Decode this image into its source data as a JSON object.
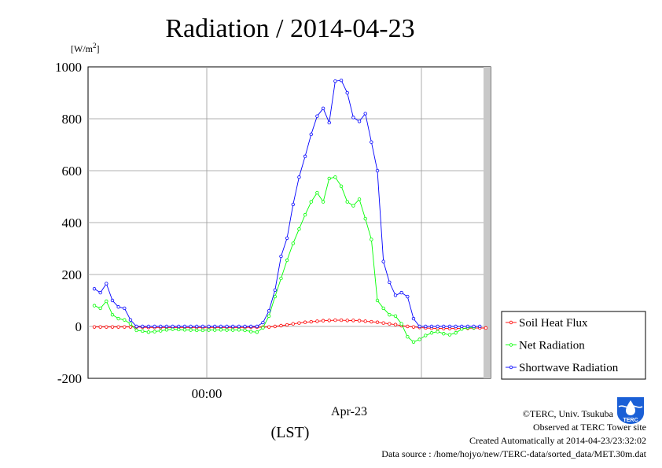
{
  "chart_data": {
    "type": "line",
    "title": "Radiation / 2014-04-23",
    "ylabel": "[W/m",
    "ylabel_sup": "2",
    "ylabel_close": "]",
    "ylim": [
      -200,
      1000
    ],
    "yticks": [
      -200,
      0,
      200,
      400,
      600,
      800,
      1000
    ],
    "xlabel": "(LST)",
    "x_tick_label": "00:00",
    "x_date_label": "Apr-23",
    "grid": true,
    "legend_position": "right",
    "series": [
      {
        "name": "Soil Heat Flux",
        "color": "#ff0000",
        "values": [
          -2,
          -2,
          -2,
          -2,
          -2,
          -2,
          -2,
          -2,
          -3,
          -4,
          -4,
          -4,
          -4,
          -4,
          -4,
          -4,
          -4,
          -4,
          -4,
          -4,
          -4,
          -4,
          -4,
          -4,
          -4,
          -4,
          -3,
          -3,
          -3,
          -2,
          0,
          3,
          6,
          10,
          13,
          16,
          18,
          20,
          22,
          23,
          24,
          24,
          23,
          23,
          22,
          20,
          18,
          16,
          13,
          10,
          7,
          3,
          0,
          -2,
          -4,
          -6,
          -7,
          -8,
          -8,
          -8,
          -8,
          -8,
          -7,
          -6,
          -6,
          -6
        ]
      },
      {
        "name": "Net Radiation",
        "color": "#00ff00",
        "values": [
          80,
          70,
          97,
          45,
          30,
          25,
          10,
          -15,
          -18,
          -22,
          -20,
          -17,
          -13,
          -11,
          -12,
          -13,
          -14,
          -15,
          -15,
          -14,
          -14,
          -13,
          -14,
          -14,
          -13,
          -15,
          -20,
          -22,
          -5,
          40,
          115,
          185,
          255,
          320,
          375,
          430,
          480,
          515,
          480,
          570,
          575,
          540,
          480,
          465,
          490,
          415,
          335,
          100,
          70,
          45,
          40,
          10,
          -40,
          -60,
          -50,
          -35,
          -25,
          -20,
          -28,
          -32,
          -25,
          -10,
          -5,
          -5
        ]
      },
      {
        "name": "Shortwave Radiation",
        "color": "#0000ff",
        "values": [
          145,
          130,
          165,
          100,
          75,
          70,
          25,
          0,
          0,
          0,
          0,
          0,
          0,
          0,
          0,
          0,
          0,
          0,
          0,
          0,
          0,
          0,
          0,
          0,
          0,
          0,
          0,
          0,
          15,
          60,
          140,
          270,
          340,
          470,
          575,
          655,
          740,
          810,
          840,
          785,
          945,
          948,
          900,
          805,
          790,
          820,
          710,
          600,
          250,
          170,
          120,
          130,
          115,
          30,
          0,
          0,
          0,
          0,
          0,
          0,
          0,
          0,
          0,
          0,
          0
        ]
      }
    ]
  },
  "footer": {
    "credit": "©TERC, Univ. Tsukuba",
    "observed": "Observed at TERC Tower site",
    "created": "Created Automatically at 2014-04-23/23:32:02",
    "source": "Data source : /home/hojyo/new/TERC-data/sorted_data/MET.30m.dat"
  },
  "logo": {
    "text": "TERC",
    "color": "#1a5fd6"
  }
}
